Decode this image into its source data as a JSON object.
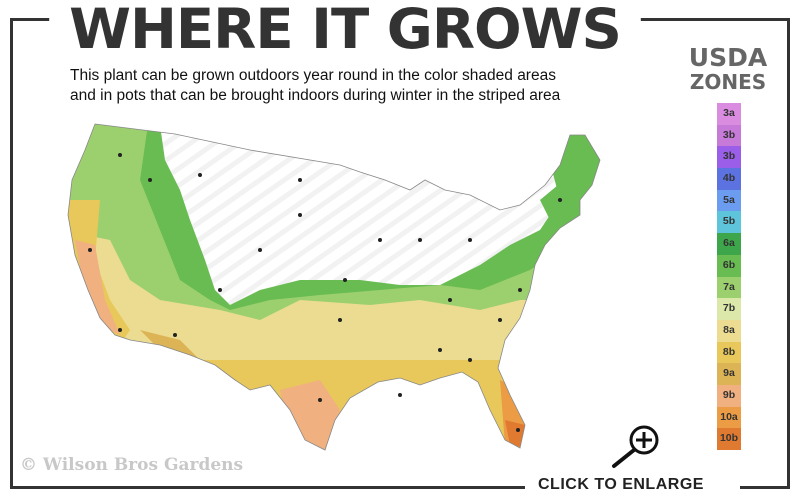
{
  "header": {
    "title": "WHERE IT GROWS",
    "subtitle_line1": "This plant can be grown outdoors year round in the color shaded areas",
    "subtitle_line2": "and in pots that can be brought indoors during winter in the striped area"
  },
  "legend": {
    "title_line1": "USDA",
    "title_line2": "ZONES",
    "zones": [
      {
        "label": "3a",
        "color": "#d98ce0"
      },
      {
        "label": "3b",
        "color": "#c77ad8"
      },
      {
        "label": "3b",
        "color": "#9a5ee8"
      },
      {
        "label": "4b",
        "color": "#5b72e0"
      },
      {
        "label": "5a",
        "color": "#6b9cf0"
      },
      {
        "label": "5b",
        "color": "#5ec4dc"
      },
      {
        "label": "6a",
        "color": "#3ea64a"
      },
      {
        "label": "6b",
        "color": "#68bc52"
      },
      {
        "label": "7a",
        "color": "#9cd06e"
      },
      {
        "label": "7b",
        "color": "#dce8aa"
      },
      {
        "label": "8a",
        "color": "#ecdc92"
      },
      {
        "label": "8b",
        "color": "#e8c85a"
      },
      {
        "label": "9a",
        "color": "#dcb456"
      },
      {
        "label": "9b",
        "color": "#f0b080"
      },
      {
        "label": "10a",
        "color": "#eb9c44"
      },
      {
        "label": "10b",
        "color": "#e07a30"
      }
    ]
  },
  "watermark": "© Wilson Bros Gardens",
  "footer": {
    "enlarge_label": "CLICK TO ENLARGE",
    "icon": "zoom-in-icon"
  }
}
